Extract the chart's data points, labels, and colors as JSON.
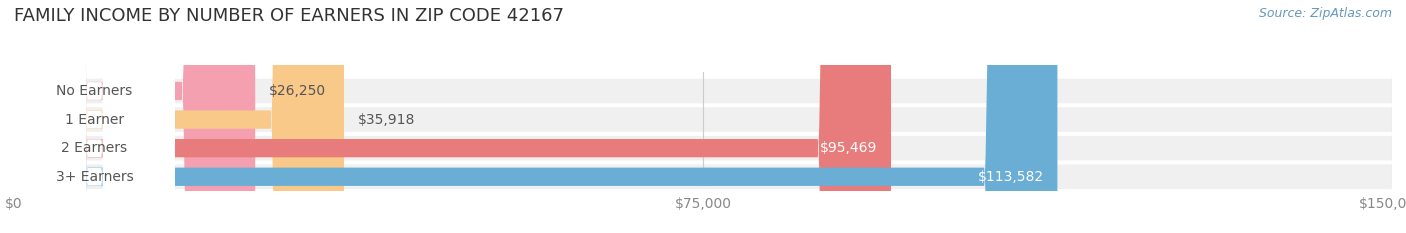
{
  "title": "FAMILY INCOME BY NUMBER OF EARNERS IN ZIP CODE 42167",
  "source": "Source: ZipAtlas.com",
  "categories": [
    "No Earners",
    "1 Earner",
    "2 Earners",
    "3+ Earners"
  ],
  "values": [
    26250,
    35918,
    95469,
    113582
  ],
  "bar_colors": [
    "#f4a0b0",
    "#f9c98a",
    "#e87c7c",
    "#6aaed6"
  ],
  "label_colors": [
    "#888888",
    "#888888",
    "#ffffff",
    "#ffffff"
  ],
  "bar_bg_color": "#f0f0f0",
  "background_color": "#ffffff",
  "row_bg_colors": [
    "#f7f7f7",
    "#f7f7f7",
    "#f7f7f7",
    "#f7f7f7"
  ],
  "xlim": [
    0,
    150000
  ],
  "xticks": [
    0,
    75000,
    150000
  ],
  "xtick_labels": [
    "$0",
    "$75,000",
    "$150,000"
  ],
  "value_labels": [
    "$26,250",
    "$35,918",
    "$95,469",
    "$113,582"
  ],
  "title_fontsize": 13,
  "label_fontsize": 10,
  "tick_fontsize": 10,
  "source_fontsize": 9
}
